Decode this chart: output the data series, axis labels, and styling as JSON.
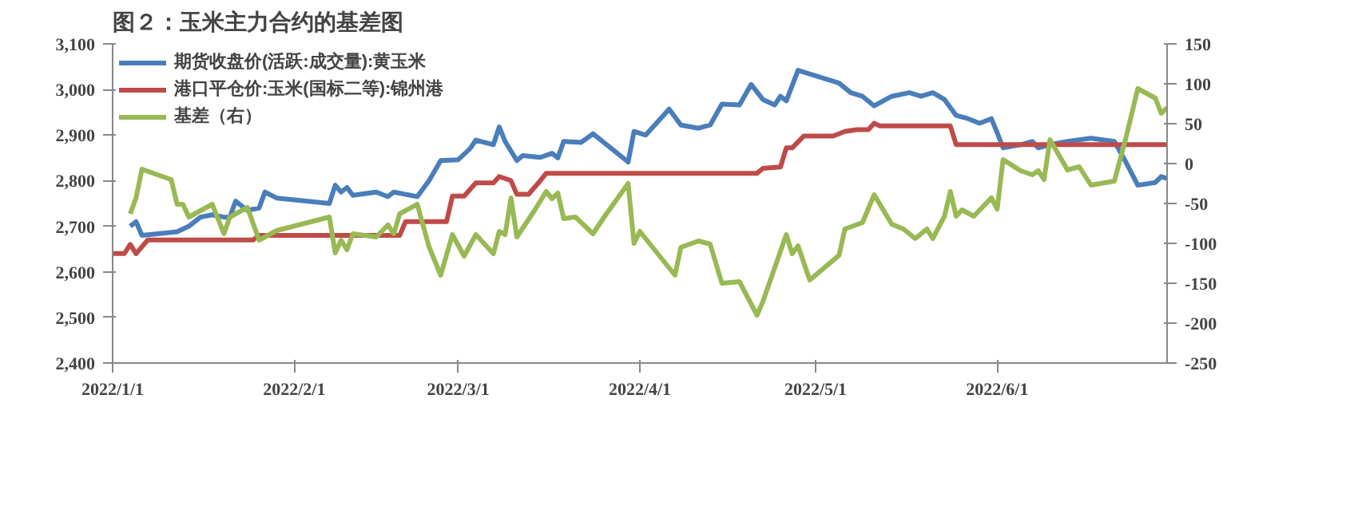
{
  "chart_data": {
    "type": "line",
    "title": "图２：玉米主力合约的基差图",
    "xlim": [
      "2022-01-01",
      "2022-06-30"
    ],
    "xticks": [
      {
        "value": "2022-01-01",
        "label": "2022/1/1"
      },
      {
        "value": "2022-02-01",
        "label": "2022/2/1"
      },
      {
        "value": "2022-03-01",
        "label": "2022/3/1"
      },
      {
        "value": "2022-04-01",
        "label": "2022/4/1"
      },
      {
        "value": "2022-05-01",
        "label": "2022/5/1"
      },
      {
        "value": "2022-06-01",
        "label": "2022/6/1"
      }
    ],
    "ylim": [
      2400,
      3100
    ],
    "yticks": [
      {
        "value": 2400,
        "label": "2,400"
      },
      {
        "value": 2500,
        "label": "2,500"
      },
      {
        "value": 2600,
        "label": "2,600"
      },
      {
        "value": 2700,
        "label": "2,700"
      },
      {
        "value": 2800,
        "label": "2,800"
      },
      {
        "value": 2900,
        "label": "2,900"
      },
      {
        "value": 3000,
        "label": "3,000"
      },
      {
        "value": 3100,
        "label": "3,100"
      }
    ],
    "y2lim": [
      -250,
      150
    ],
    "y2ticks": [
      -250,
      -200,
      -150,
      -100,
      -50,
      0,
      50,
      100,
      150
    ],
    "grid": false,
    "legend": "top left",
    "series": [
      {
        "name": "期货收盘价(活跃:成交量):黄玉米",
        "color": "#4a7ebb",
        "x": [
          "2022-01-04",
          "2022-01-05",
          "2022-01-06",
          "2022-01-12",
          "2022-01-14",
          "2022-01-16",
          "2022-01-18",
          "2022-01-20",
          "2022-01-21",
          "2022-01-22",
          "2022-01-24",
          "2022-01-26",
          "2022-01-27",
          "2022-01-29",
          "2022-02-07",
          "2022-02-08",
          "2022-02-09",
          "2022-02-10",
          "2022-02-11",
          "2022-02-15",
          "2022-02-17",
          "2022-02-18",
          "2022-02-22",
          "2022-02-24",
          "2022-02-26",
          "2022-03-01",
          "2022-03-03",
          "2022-03-04",
          "2022-03-07",
          "2022-03-08",
          "2022-03-09",
          "2022-03-11",
          "2022-03-12",
          "2022-03-15",
          "2022-03-17",
          "2022-03-18",
          "2022-03-19",
          "2022-03-22",
          "2022-03-24",
          "2022-03-30",
          "2022-03-31",
          "2022-04-02",
          "2022-04-06",
          "2022-04-08",
          "2022-04-11",
          "2022-04-13",
          "2022-04-15",
          "2022-04-18",
          "2022-04-20",
          "2022-04-22",
          "2022-04-24",
          "2022-04-25",
          "2022-04-26",
          "2022-04-28",
          "2022-05-05",
          "2022-05-07",
          "2022-05-09",
          "2022-05-11",
          "2022-05-12",
          "2022-05-14",
          "2022-05-17",
          "2022-05-19",
          "2022-05-21",
          "2022-05-23",
          "2022-05-25",
          "2022-05-27",
          "2022-05-29",
          "2022-05-31",
          "2022-06-01",
          "2022-06-02",
          "2022-06-05",
          "2022-06-07",
          "2022-06-08",
          "2022-06-10",
          "2022-06-13",
          "2022-06-17",
          "2022-06-21",
          "2022-06-23",
          "2022-06-25",
          "2022-06-28",
          "2022-06-29",
          "2022-06-30"
        ],
        "values": [
          2700,
          2710,
          2680,
          2688,
          2700,
          2720,
          2725,
          2720,
          2720,
          2755,
          2735,
          2740,
          2775,
          2762,
          2750,
          2790,
          2775,
          2785,
          2768,
          2775,
          2765,
          2775,
          2765,
          2800,
          2844,
          2846,
          2870,
          2889,
          2879,
          2918,
          2886,
          2844,
          2855,
          2851,
          2860,
          2850,
          2886,
          2884,
          2903,
          2841,
          2908,
          2900,
          2957,
          2922,
          2915,
          2922,
          2968,
          2966,
          3011,
          2978,
          2966,
          2985,
          2975,
          3042,
          3014,
          2993,
          2985,
          2964,
          2971,
          2985,
          2993,
          2985,
          2993,
          2978,
          2943,
          2936,
          2926,
          2936,
          2905,
          2872,
          2879,
          2886,
          2872,
          2879,
          2886,
          2893,
          2886,
          2840,
          2790,
          2796,
          2809,
          2805
        ]
      },
      {
        "name": "港口平仓价:玉米(国标二等):锦州港",
        "color": "#be4b48",
        "x": [
          "2022-01-01",
          "2022-01-03",
          "2022-01-04",
          "2022-01-05",
          "2022-01-07",
          "2022-01-25",
          "2022-01-26",
          "2022-02-19",
          "2022-02-20",
          "2022-02-27",
          "2022-02-28",
          "2022-03-02",
          "2022-03-04",
          "2022-03-07",
          "2022-03-08",
          "2022-03-10",
          "2022-03-11",
          "2022-03-13",
          "2022-03-15",
          "2022-03-16",
          "2022-04-21",
          "2022-04-22",
          "2022-04-25",
          "2022-04-26",
          "2022-04-27",
          "2022-04-29",
          "2022-05-04",
          "2022-05-06",
          "2022-05-08",
          "2022-05-10",
          "2022-05-11",
          "2022-05-12",
          "2022-05-24",
          "2022-05-25",
          "2022-06-30"
        ],
        "values": [
          2640,
          2640,
          2660,
          2640,
          2670,
          2670,
          2680,
          2680,
          2710,
          2710,
          2766,
          2766,
          2795,
          2795,
          2809,
          2800,
          2770,
          2770,
          2800,
          2816,
          2816,
          2827,
          2830,
          2872,
          2872,
          2898,
          2898,
          2908,
          2912,
          2912,
          2926,
          2920,
          2920,
          2879,
          2879
        ]
      },
      {
        "name": "基差（右）",
        "color": "#98b954",
        "axis": "y2",
        "x": [
          "2022-01-04",
          "2022-01-05",
          "2022-01-06",
          "2022-01-09",
          "2022-01-11",
          "2022-01-12",
          "2022-01-13",
          "2022-01-14",
          "2022-01-18",
          "2022-01-20",
          "2022-01-21",
          "2022-01-24",
          "2022-01-26",
          "2022-01-29",
          "2022-02-07",
          "2022-02-08",
          "2022-02-09",
          "2022-02-10",
          "2022-02-11",
          "2022-02-15",
          "2022-02-17",
          "2022-02-18",
          "2022-02-19",
          "2022-02-22",
          "2022-02-24",
          "2022-02-26",
          "2022-02-28",
          "2022-03-02",
          "2022-03-04",
          "2022-03-07",
          "2022-03-08",
          "2022-03-09",
          "2022-03-10",
          "2022-03-11",
          "2022-03-14",
          "2022-03-16",
          "2022-03-17",
          "2022-03-18",
          "2022-03-19",
          "2022-03-21",
          "2022-03-24",
          "2022-03-26",
          "2022-03-30",
          "2022-03-31",
          "2022-04-01",
          "2022-04-07",
          "2022-04-08",
          "2022-04-11",
          "2022-04-13",
          "2022-04-15",
          "2022-04-18",
          "2022-04-21",
          "2022-04-22",
          "2022-04-26",
          "2022-04-27",
          "2022-04-28",
          "2022-04-30",
          "2022-05-05",
          "2022-05-06",
          "2022-05-09",
          "2022-05-11",
          "2022-05-14",
          "2022-05-16",
          "2022-05-18",
          "2022-05-20",
          "2022-05-21",
          "2022-05-23",
          "2022-05-24",
          "2022-05-25",
          "2022-05-26",
          "2022-05-28",
          "2022-05-31",
          "2022-06-01",
          "2022-06-02",
          "2022-06-05",
          "2022-06-07",
          "2022-06-08",
          "2022-06-09",
          "2022-06-10",
          "2022-06-13",
          "2022-06-15",
          "2022-06-17",
          "2022-06-21",
          "2022-06-23",
          "2022-06-25",
          "2022-06-28",
          "2022-06-29",
          "2022-06-30"
        ],
        "values": [
          -63,
          -43,
          -7,
          -15,
          -20,
          -51,
          -51,
          -67,
          -51,
          -88,
          -67,
          -55,
          -96,
          -84,
          -67,
          -112,
          -96,
          -108,
          -88,
          -92,
          -77,
          -88,
          -63,
          -51,
          -104,
          -140,
          -89,
          -116,
          -89,
          -113,
          -85,
          -89,
          -43,
          -92,
          -59,
          -35,
          -44,
          -37,
          -69,
          -67,
          -88,
          -66,
          -25,
          -100,
          -85,
          -140,
          -105,
          -97,
          -101,
          -150,
          -148,
          -190,
          -173,
          -89,
          -113,
          -103,
          -146,
          -115,
          -82,
          -74,
          -39,
          -76,
          -82,
          -94,
          -82,
          -94,
          -66,
          -35,
          -66,
          -58,
          -66,
          -43,
          -57,
          5,
          -9,
          -14,
          -9,
          -20,
          30,
          -8,
          -4,
          -27,
          -22,
          33,
          94,
          82,
          63,
          70
        ]
      }
    ]
  }
}
